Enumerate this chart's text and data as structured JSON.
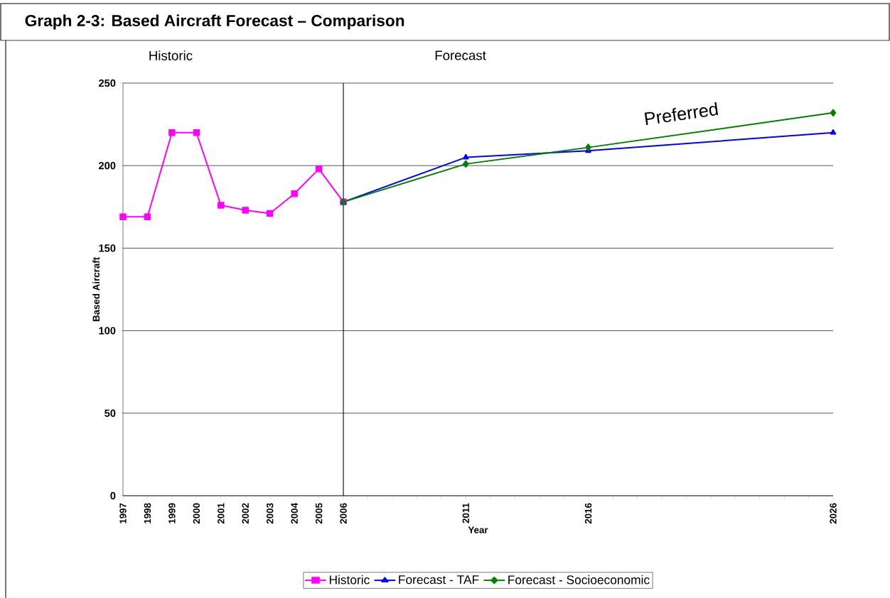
{
  "chart_data": {
    "type": "line",
    "title": "Graph 2-3:  Based Aircraft Forecast – Comparison",
    "xlabel": "Year",
    "ylabel": "Based Aircraft",
    "xlim": [
      1997,
      2026
    ],
    "ylim": [
      0,
      250
    ],
    "yticks": [
      0,
      50,
      100,
      150,
      200,
      250
    ],
    "xticks": [
      1997,
      1998,
      1999,
      2000,
      2001,
      2002,
      2003,
      2004,
      2005,
      2006,
      {
        "value": 2007,
        "label": null
      },
      {
        "value": 2008,
        "label": null
      },
      {
        "value": 2009,
        "label": null
      },
      {
        "value": 2010,
        "label": null
      },
      2011,
      {
        "value": 2012,
        "label": null
      },
      {
        "value": 2013,
        "label": null
      },
      {
        "value": 2014,
        "label": null
      },
      {
        "value": 2015,
        "label": null
      },
      2016,
      {
        "value": 2017,
        "label": null
      },
      {
        "value": 2018,
        "label": null
      },
      {
        "value": 2019,
        "label": null
      },
      {
        "value": 2020,
        "label": null
      },
      {
        "value": 2021,
        "label": null
      },
      {
        "value": 2022,
        "label": null
      },
      {
        "value": 2023,
        "label": null
      },
      {
        "value": 2024,
        "label": null
      },
      {
        "value": 2025,
        "label": null
      },
      2026
    ],
    "grid": "y",
    "legend": "bottom",
    "line_style": "solid",
    "ref_lines": [
      {
        "axis": "x",
        "value": 2006,
        "color": "#000000"
      }
    ],
    "annotations": [
      "Historic",
      "Forecast",
      "Preferred"
    ],
    "series": [
      {
        "name": "Historic",
        "color": "#ff00ff",
        "marker": "square",
        "x": [
          1997,
          1998,
          1999,
          2000,
          2001,
          2002,
          2003,
          2004,
          2005,
          2006
        ],
        "values": [
          169,
          169,
          220,
          220,
          176,
          173,
          171,
          183,
          198,
          178
        ]
      },
      {
        "name": "Forecast - TAF",
        "color": "#0000ff",
        "marker": "triangle",
        "x": [
          2006,
          2011,
          2016,
          2026
        ],
        "values": [
          178,
          205,
          209,
          220
        ]
      },
      {
        "name": "Forecast - Socioeconomic",
        "color": "#008000",
        "marker": "diamond",
        "x": [
          2006,
          2011,
          2016,
          2026
        ],
        "values": [
          178,
          201,
          211,
          232
        ]
      }
    ]
  }
}
